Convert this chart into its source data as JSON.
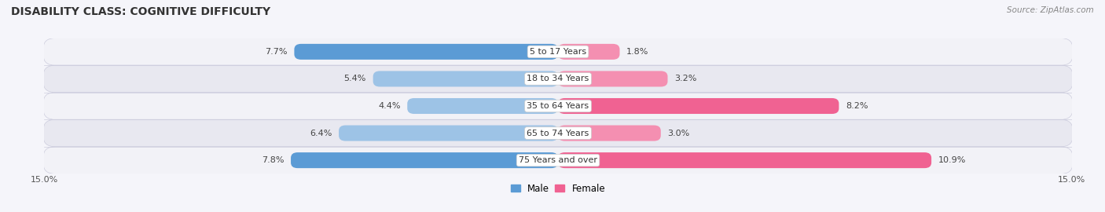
{
  "title": "DISABILITY CLASS: COGNITIVE DIFFICULTY",
  "source": "Source: ZipAtlas.com",
  "categories": [
    "5 to 17 Years",
    "18 to 34 Years",
    "35 to 64 Years",
    "65 to 74 Years",
    "75 Years and over"
  ],
  "male_values": [
    7.7,
    5.4,
    4.4,
    6.4,
    7.8
  ],
  "female_values": [
    1.8,
    3.2,
    8.2,
    3.0,
    10.9
  ],
  "male_color_dark": "#5b9bd5",
  "male_color_light": "#9dc3e6",
  "female_color_dark": "#f06292",
  "female_color_light": "#f48fb1",
  "row_bg_colors": [
    "#f2f2f7",
    "#e8e8f0"
  ],
  "max_val": 15.0,
  "legend_male": "Male",
  "legend_female": "Female",
  "title_fontsize": 10,
  "value_fontsize": 8,
  "cat_fontsize": 8,
  "tick_fontsize": 8,
  "bg_color": "#f5f5fa"
}
